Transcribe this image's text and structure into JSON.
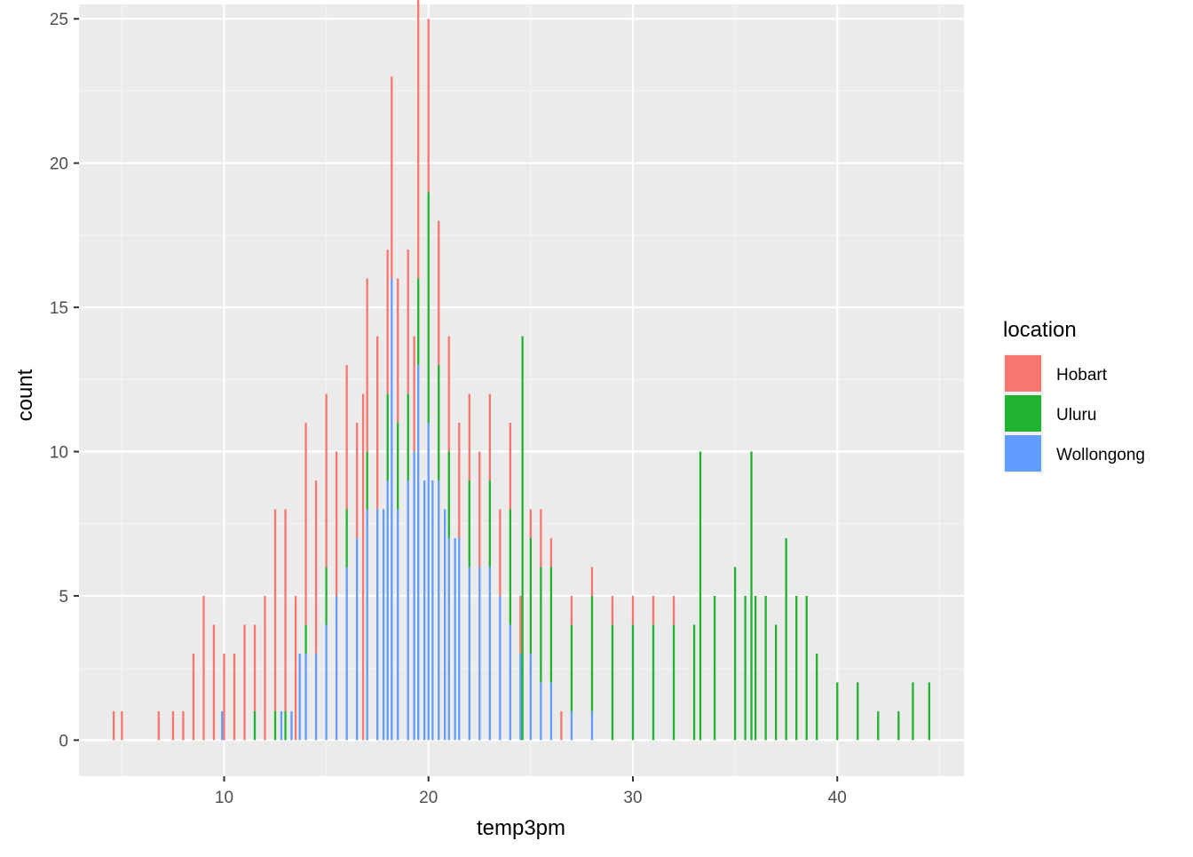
{
  "chart_data": {
    "type": "bar",
    "subtype": "stacked histogram",
    "xlabel": "temp3pm",
    "ylabel": "count",
    "xlim": [
      2.9,
      46.2
    ],
    "ylim": [
      -1.25,
      25.5
    ],
    "x_ticks": [
      "10",
      "20",
      "30",
      "40"
    ],
    "y_ticks": [
      "0",
      "5",
      "10",
      "15",
      "20",
      "25"
    ],
    "bin_width": 0.1,
    "grid": true,
    "legend": {
      "title": "location",
      "placement": "right",
      "entries": [
        "Hobart",
        "Uluru",
        "Wollongong"
      ]
    },
    "series": [
      {
        "name": "Wollongong",
        "color": "#619CFF",
        "x": [
          9.9,
          12.8,
          13.3,
          13.7,
          14.0,
          14.5,
          15.0,
          15.5,
          16.0,
          16.5,
          17.0,
          17.5,
          17.8,
          18.0,
          18.2,
          18.5,
          19.0,
          19.3,
          19.5,
          19.8,
          20.0,
          20.2,
          20.5,
          20.8,
          21.0,
          21.3,
          21.5,
          22.0,
          22.5,
          23.0,
          23.5,
          24.0,
          24.5,
          25.0,
          25.5,
          26.0,
          27.0,
          28.0
        ],
        "values": [
          1,
          1,
          1,
          3,
          3,
          3,
          4,
          5,
          6,
          7,
          8,
          8,
          8,
          9,
          16,
          8,
          9,
          10,
          13,
          9,
          11,
          9,
          9,
          8,
          7,
          7,
          7,
          6,
          6,
          6,
          5,
          4,
          3,
          3,
          2,
          2,
          1,
          1
        ]
      },
      {
        "name": "Uluru",
        "color": "#1FB32F",
        "x": [
          11.5,
          12.5,
          13.0,
          14.0,
          15.0,
          16.0,
          17.0,
          18.0,
          18.5,
          19.0,
          19.5,
          20.0,
          20.5,
          21.0,
          22.0,
          23.0,
          24.0,
          24.6,
          25.0,
          25.5,
          26.0,
          27.0,
          28.0,
          29.0,
          30.0,
          31.0,
          32.0,
          33.0,
          33.3,
          34.0,
          35.0,
          35.5,
          35.8,
          36.0,
          36.5,
          37.0,
          37.5,
          38.0,
          38.5,
          39.0,
          40.0,
          41.0,
          42.0,
          43.0,
          43.7,
          44.5
        ],
        "values": [
          1,
          1,
          1,
          1,
          2,
          2,
          2,
          3,
          3,
          3,
          3,
          8,
          4,
          3,
          3,
          3,
          4,
          14,
          4,
          4,
          4,
          3,
          4,
          4,
          4,
          4,
          4,
          4,
          10,
          5,
          6,
          5,
          10,
          5,
          5,
          4,
          7,
          5,
          5,
          3,
          2,
          2,
          1,
          1,
          2,
          2
        ]
      },
      {
        "name": "Hobart",
        "color": "#F8766D",
        "x": [
          4.6,
          5.0,
          6.8,
          7.5,
          8.0,
          8.5,
          9.0,
          9.5,
          10.0,
          10.5,
          11.0,
          11.5,
          12.0,
          12.5,
          13.0,
          13.5,
          14.0,
          14.5,
          15.0,
          15.5,
          16.0,
          16.5,
          16.8,
          17.0,
          17.5,
          18.0,
          18.2,
          18.5,
          19.0,
          19.3,
          19.5,
          20.0,
          20.5,
          21.0,
          21.5,
          22.0,
          22.5,
          23.0,
          23.5,
          24.0,
          24.5,
          25.0,
          25.5,
          26.0,
          26.5,
          27.0,
          28.0,
          29.0,
          30.0,
          31.0,
          32.0
        ],
        "values": [
          1,
          1,
          1,
          1,
          1,
          3,
          5,
          4,
          3,
          3,
          4,
          3,
          5,
          7,
          7,
          5,
          7,
          6,
          6,
          5,
          5,
          4,
          12,
          6,
          6,
          5,
          7,
          5,
          5,
          4,
          11,
          6,
          5,
          4,
          4,
          3,
          4,
          3,
          3,
          3,
          2,
          1,
          2,
          1,
          1,
          1,
          1,
          1,
          1,
          1,
          1
        ]
      }
    ]
  }
}
